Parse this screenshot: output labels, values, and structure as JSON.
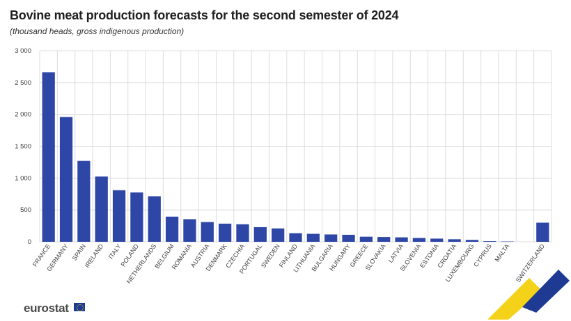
{
  "chart_data": {
    "type": "bar",
    "title": "Bovine meat production forecasts for the second semester of 2024",
    "subtitle": "(thousand heads, gross indigenous production)",
    "categories": [
      "FRANCE",
      "GERMANY",
      "SPAIN",
      "IRELAND",
      "ITALY",
      "POLAND",
      "NETHERLANDS",
      "BELGIUM",
      "ROMANIA",
      "AUSTRIA",
      "DENMARK",
      "CZECHIA",
      "PORTUGAL",
      "SWEDEN",
      "FINLAND",
      "LITHUANIA",
      "BULGARIA",
      "HUNGARY",
      "GREECE",
      "SLOVAKIA",
      "LATVIA",
      "SLOVENIA",
      "ESTONIA",
      "CROATIA",
      "LUXEMBOURG",
      "CYPRUS",
      "MALTA",
      "",
      "SWITZERLAND"
    ],
    "values": [
      2660,
      1960,
      1270,
      1025,
      810,
      775,
      715,
      395,
      355,
      310,
      285,
      275,
      230,
      210,
      135,
      125,
      115,
      110,
      80,
      75,
      70,
      60,
      50,
      40,
      30,
      10,
      5,
      null,
      300
    ],
    "ylim": [
      0,
      3000
    ],
    "yticks": [
      0,
      500,
      1000,
      1500,
      2000,
      2500,
      3000
    ],
    "ytick_labels": [
      "0",
      "500",
      "1 000",
      "1 500",
      "2 000",
      "2 500",
      "3 000"
    ],
    "grid": true,
    "bar_color": "#2e46a6"
  },
  "footer": {
    "logo": "eurostat"
  },
  "colors": {
    "grid": "#dcdcdc",
    "swoosh_yellow": "#f4d21a",
    "swoosh_blue": "#1f3a93"
  }
}
